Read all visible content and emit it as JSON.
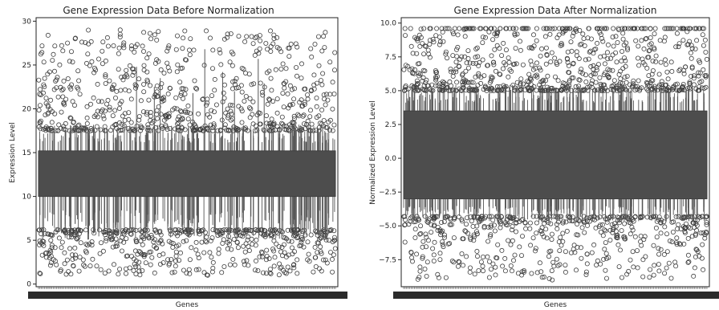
{
  "chart_data": [
    {
      "type": "box",
      "title": "Gene Expression Data Before Normalization",
      "xlabel": "Genes",
      "ylabel": "Expression Level",
      "ylim": [
        -0.3,
        30.4
      ],
      "yticks": [
        0,
        5,
        10,
        15,
        20,
        25,
        30
      ],
      "ytick_labels": [
        "0",
        "5",
        "10",
        "15",
        "20",
        "25",
        "30"
      ],
      "grid": false,
      "legend": "none",
      "summary": {
        "whisker_low": 6.2,
        "q1": 10.0,
        "q3": 15.2,
        "whisker_high": 17.5,
        "outlier_min": 1.0,
        "outlier_max": 29.0
      },
      "highlighted_outliers": [
        {
          "x": 0.275,
          "y": 29.0
        },
        {
          "x": 0.275,
          "y": 28.5
        },
        {
          "x": 0.275,
          "y": 28.2
        },
        {
          "x": 0.565,
          "y": 28.9
        },
        {
          "x": 0.73,
          "y": 28.1
        },
        {
          "x": 0.168,
          "y": 27.4
        },
        {
          "x": 0.485,
          "y": 26.9
        },
        {
          "x": 0.955,
          "y": 26.6
        },
        {
          "x": 0.57,
          "y": 1.0
        },
        {
          "x": 0.45,
          "y": 1.3
        },
        {
          "x": 0.06,
          "y": 2.2
        }
      ],
      "colors": {
        "box_fill": "#4d4d4d",
        "edge": "#3f3f3f",
        "whisker": "#555555"
      }
    },
    {
      "type": "box",
      "title": "Gene Expression Data After Normalization",
      "xlabel": "Genes",
      "ylabel": "Normalized Expression Level",
      "ylim": [
        -9.5,
        10.4
      ],
      "yticks": [
        -7.5,
        -5.0,
        -2.5,
        0.0,
        2.5,
        5.0,
        7.5,
        10.0
      ],
      "ytick_labels": [
        "−7.5",
        "−5.0",
        "−2.5",
        "0.0",
        "2.5",
        "5.0",
        "7.5",
        "10.0"
      ],
      "grid": false,
      "legend": "none",
      "summary": {
        "whisker_low": -4.3,
        "q1": -3.0,
        "q3": 3.5,
        "whisker_high": 5.0,
        "outlier_min": -9.0,
        "outlier_max": 9.6,
        "clip_value": 9.6
      },
      "highlighted_outliers": [
        {
          "x": 0.49,
          "y": -9.0
        },
        {
          "x": 0.18,
          "y": -8.0
        },
        {
          "x": 0.86,
          "y": -8.5
        },
        {
          "x": 0.96,
          "y": -8.1
        },
        {
          "x": 0.1,
          "y": -7.6
        }
      ],
      "colors": {
        "box_fill": "#4d4d4d",
        "edge": "#3f3f3f",
        "whisker": "#555555"
      }
    }
  ]
}
